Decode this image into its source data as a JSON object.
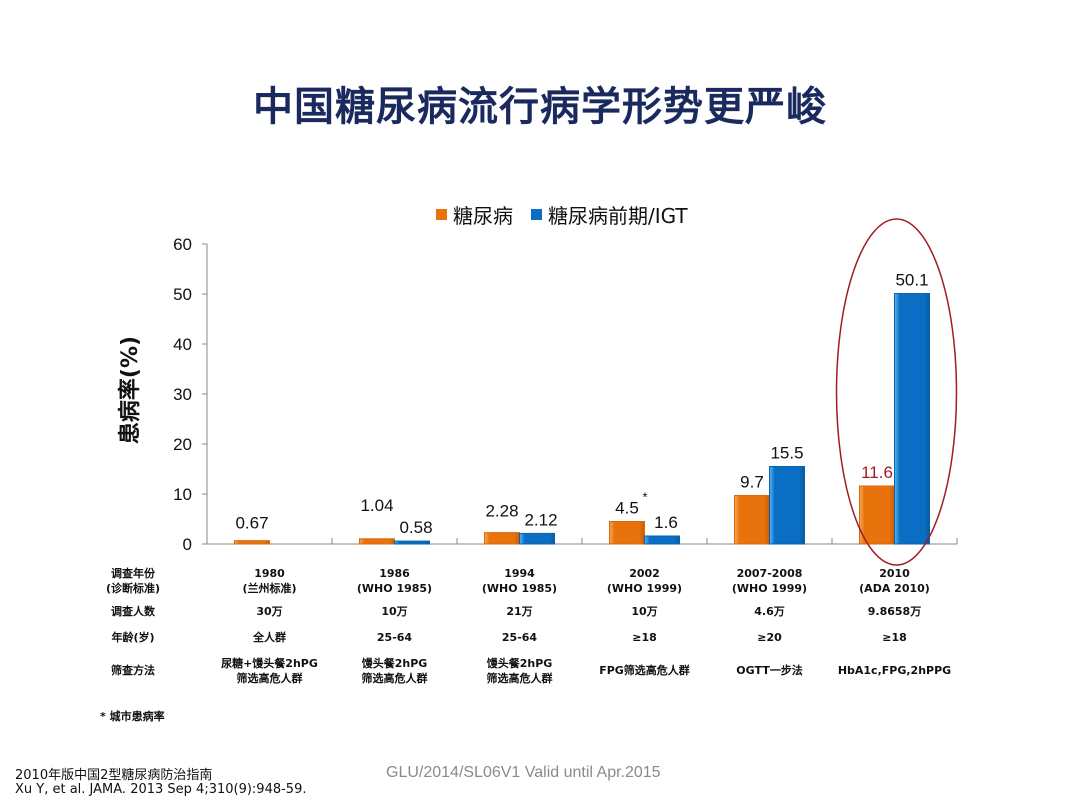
{
  "title": "中国糖尿病流行病学形势更严峻",
  "colors": {
    "diabetes": "#e8720c",
    "prediabetes": "#0a6fc4",
    "highlight": "#a11c22",
    "axis": "#888888"
  },
  "chart_data": {
    "type": "bar",
    "title": "",
    "xlabel": "",
    "ylabel": "患病率(%)",
    "ylim": [
      0,
      60
    ],
    "yticks": [
      0,
      10,
      20,
      30,
      40,
      50,
      60
    ],
    "grid": false,
    "legend_position": "top-center",
    "categories": [
      "1980",
      "1986",
      "1994",
      "2002",
      "2007-2008",
      "2010"
    ],
    "series": [
      {
        "name": "糖尿病",
        "values": [
          0.67,
          1.04,
          2.28,
          4.5,
          9.7,
          11.6
        ],
        "labels": [
          "0.67",
          "1.04",
          "2.28",
          "4.5",
          "9.7",
          "11.6"
        ]
      },
      {
        "name": "糖尿病前期/IGT",
        "values": [
          null,
          0.58,
          2.12,
          1.6,
          15.5,
          50.1
        ],
        "labels": [
          "",
          "0.58",
          "2.12",
          "1.6",
          "15.5",
          "50.1"
        ]
      }
    ],
    "annotations": [
      {
        "category": "2002",
        "series": "糖尿病",
        "text": "*"
      },
      {
        "category": "2010",
        "text": "highlighted-ellipse"
      }
    ]
  },
  "table": {
    "row_labels": [
      [
        "调查年份",
        "(诊断标准)"
      ],
      [
        "调查人数"
      ],
      [
        "年龄(岁)"
      ],
      [
        "筛查方法"
      ]
    ],
    "columns": [
      {
        "year": [
          "1980",
          "(兰州标准)"
        ],
        "count": "30万",
        "age": "全人群",
        "method": [
          "尿糖+馒头餐2hPG",
          "筛选高危人群"
        ]
      },
      {
        "year": [
          "1986",
          "(WHO 1985)"
        ],
        "count": "10万",
        "age": "25-64",
        "method": [
          "馒头餐2hPG",
          "筛选高危人群"
        ]
      },
      {
        "year": [
          "1994",
          "(WHO 1985)"
        ],
        "count": "21万",
        "age": "25-64",
        "method": [
          "馒头餐2hPG",
          "筛选高危人群"
        ]
      },
      {
        "year": [
          "2002",
          "(WHO 1999)"
        ],
        "count": "10万",
        "age": "≥18",
        "method": [
          "FPG筛选高危人群"
        ]
      },
      {
        "year": [
          "2007-2008",
          "(WHO 1999)"
        ],
        "count": "4.6万",
        "age": "≥20",
        "method": [
          "OGTT一步法"
        ]
      },
      {
        "year": [
          "2010",
          "(ADA 2010)"
        ],
        "count": "9.8658万",
        "age": "≥18",
        "method": [
          "HbA1c,FPG,2hPPG"
        ]
      }
    ]
  },
  "footnote": "* 城市患病率",
  "references": [
    "2010年版中国2型糖尿病防治指南",
    "Xu Y, et al. JAMA. 2013 Sep 4;310(9):948-59."
  ],
  "watermark": "GLU/2014/SL06V1 Valid until Apr.2015"
}
